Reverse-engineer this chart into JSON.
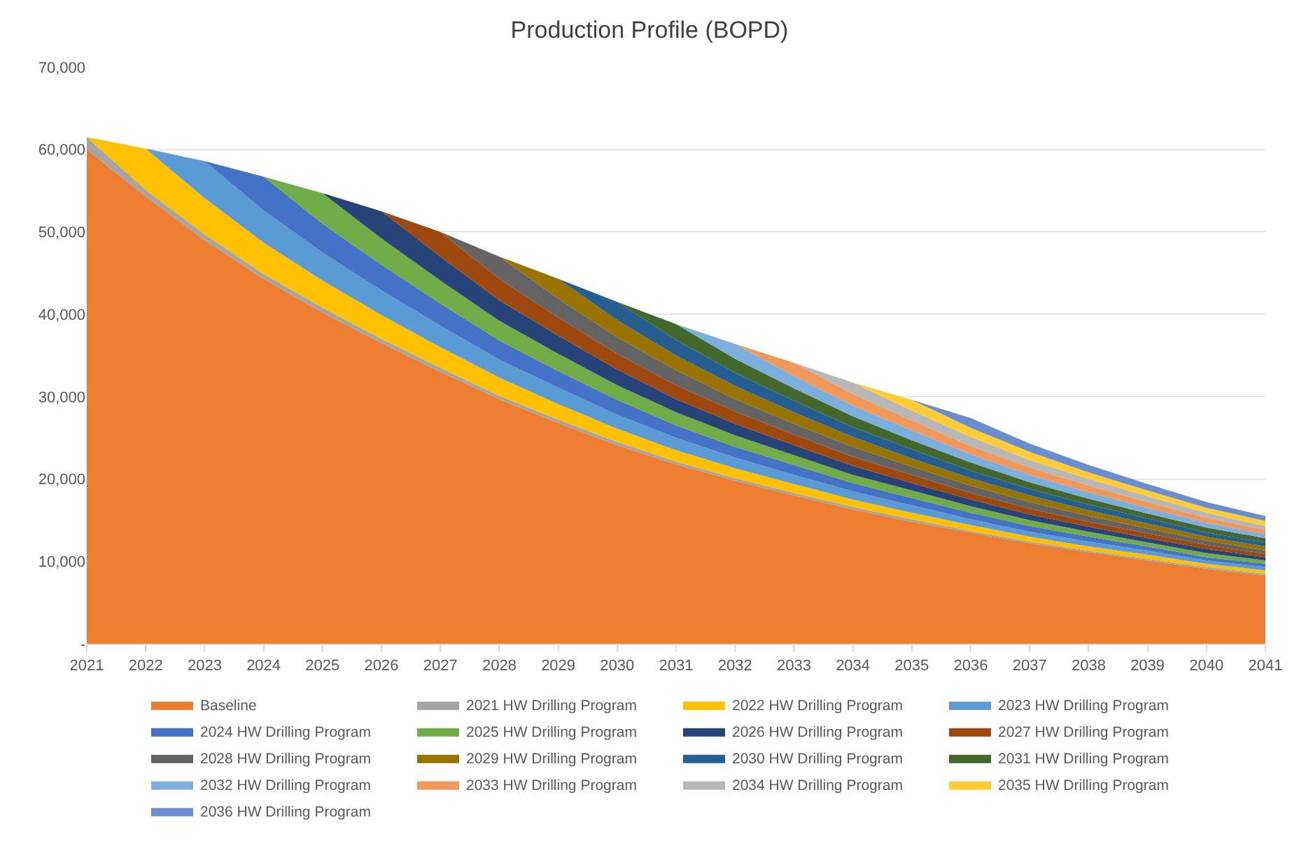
{
  "chart_data": {
    "type": "area",
    "stacked": true,
    "title": "Production Profile (BOPD)",
    "categories": [
      "2021",
      "2022",
      "2023",
      "2024",
      "2025",
      "2026",
      "2027",
      "2028",
      "2029",
      "2030",
      "2031",
      "2032",
      "2033",
      "2034",
      "2035",
      "2036",
      "2037",
      "2038",
      "2039",
      "2040",
      "2041"
    ],
    "ylim": [
      0,
      70000
    ],
    "yticks": [
      {
        "value": 0,
        "label": "-"
      },
      {
        "value": 10000,
        "label": "10,000"
      },
      {
        "value": 20000,
        "label": "20,000"
      },
      {
        "value": 30000,
        "label": "30,000"
      },
      {
        "value": 40000,
        "label": "40,000"
      },
      {
        "value": 50000,
        "label": "50,000"
      },
      {
        "value": 60000,
        "label": "60,000"
      },
      {
        "value": 70000,
        "label": "70,000"
      }
    ],
    "grid": "y",
    "legend": "bottom",
    "series": [
      {
        "name": "Baseline",
        "color": "#ed7d31",
        "values": [
          60000,
          54300,
          49000,
          44300,
          40200,
          36500,
          33000,
          29700,
          26800,
          24100,
          21800,
          19800,
          18000,
          16300,
          14800,
          13500,
          12200,
          11100,
          10100,
          9100,
          8300
        ]
      },
      {
        "name": "2021 HW Drilling Program",
        "color": "#a5a5a5",
        "values": [
          1500,
          800,
          700,
          600,
          600,
          500,
          500,
          400,
          400,
          400,
          300,
          300,
          300,
          300,
          300,
          200,
          200,
          200,
          200,
          200,
          200
        ]
      },
      {
        "name": "2022 HW Drilling Program",
        "color": "#ffc000",
        "values": [
          0,
          5000,
          4400,
          3800,
          3300,
          2900,
          2500,
          2200,
          1900,
          1600,
          1400,
          1200,
          1100,
          900,
          800,
          700,
          600,
          500,
          500,
          400,
          400
        ]
      },
      {
        "name": "2023 HW Drilling Program",
        "color": "#5b9bd5",
        "values": [
          0,
          0,
          4500,
          3900,
          3400,
          3000,
          2600,
          2200,
          2000,
          1700,
          1500,
          1300,
          1100,
          1000,
          900,
          700,
          600,
          600,
          500,
          400,
          400
        ]
      },
      {
        "name": "2024 HW Drilling Program",
        "color": "#4472c4",
        "values": [
          0,
          0,
          0,
          4100,
          3500,
          3100,
          2700,
          2300,
          2000,
          1800,
          1500,
          1300,
          1200,
          1000,
          900,
          800,
          700,
          600,
          500,
          400,
          400
        ]
      },
      {
        "name": "2025 HW Drilling Program",
        "color": "#70ad47",
        "values": [
          0,
          0,
          0,
          0,
          3700,
          3200,
          2800,
          2400,
          2100,
          1800,
          1600,
          1400,
          1200,
          1000,
          900,
          800,
          700,
          600,
          500,
          500,
          400
        ]
      },
      {
        "name": "2026 HW Drilling Program",
        "color": "#264478",
        "values": [
          0,
          0,
          0,
          0,
          0,
          3300,
          2900,
          2500,
          2200,
          1900,
          1600,
          1400,
          1200,
          1100,
          900,
          800,
          700,
          600,
          500,
          500,
          400
        ]
      },
      {
        "name": "2027 HW Drilling Program",
        "color": "#9e480e",
        "values": [
          0,
          0,
          0,
          0,
          0,
          0,
          3000,
          2600,
          2200,
          1900,
          1700,
          1500,
          1300,
          1100,
          1000,
          800,
          700,
          600,
          600,
          500,
          400
        ]
      },
      {
        "name": "2028 HW Drilling Program",
        "color": "#636363",
        "values": [
          0,
          0,
          0,
          0,
          0,
          0,
          0,
          2700,
          2300,
          2000,
          1800,
          1500,
          1300,
          1200,
          1000,
          900,
          800,
          700,
          600,
          500,
          400
        ]
      },
      {
        "name": "2029 HW Drilling Program",
        "color": "#997300",
        "values": [
          0,
          0,
          0,
          0,
          0,
          0,
          0,
          0,
          2400,
          2100,
          1800,
          1600,
          1400,
          1200,
          1000,
          900,
          800,
          700,
          600,
          500,
          500
        ]
      },
      {
        "name": "2030 HW Drilling Program",
        "color": "#255e91",
        "values": [
          0,
          0,
          0,
          0,
          0,
          0,
          0,
          0,
          0,
          2200,
          1900,
          1600,
          1400,
          1200,
          1100,
          900,
          800,
          700,
          600,
          500,
          500
        ]
      },
      {
        "name": "2031 HW Drilling Program",
        "color": "#43682b",
        "values": [
          0,
          0,
          0,
          0,
          0,
          0,
          0,
          0,
          0,
          0,
          1900,
          1700,
          1500,
          1300,
          1100,
          1000,
          800,
          700,
          600,
          600,
          500
        ]
      },
      {
        "name": "2032 HW Drilling Program",
        "color": "#7cafdd",
        "values": [
          0,
          0,
          0,
          0,
          0,
          0,
          0,
          0,
          0,
          0,
          0,
          1800,
          1500,
          1300,
          1200,
          1000,
          900,
          800,
          700,
          600,
          500
        ]
      },
      {
        "name": "2033 HW Drilling Program",
        "color": "#f1975a",
        "values": [
          0,
          0,
          0,
          0,
          0,
          0,
          0,
          0,
          0,
          0,
          0,
          0,
          1600,
          1400,
          1200,
          1000,
          900,
          800,
          700,
          600,
          500
        ]
      },
      {
        "name": "2034 HW Drilling Program",
        "color": "#b7b7b7",
        "values": [
          0,
          0,
          0,
          0,
          0,
          0,
          0,
          0,
          0,
          0,
          0,
          0,
          0,
          1400,
          1200,
          1100,
          900,
          800,
          700,
          600,
          500
        ]
      },
      {
        "name": "2035 HW Drilling Program",
        "color": "#ffcd33",
        "values": [
          0,
          0,
          0,
          0,
          0,
          0,
          0,
          0,
          0,
          0,
          0,
          0,
          0,
          0,
          1300,
          1100,
          1000,
          800,
          700,
          600,
          600
        ]
      },
      {
        "name": "2036 HW Drilling Program",
        "color": "#698ed0",
        "values": [
          0,
          0,
          0,
          0,
          0,
          0,
          0,
          0,
          0,
          0,
          0,
          0,
          0,
          0,
          0,
          1200,
          1000,
          900,
          800,
          700,
          600
        ]
      }
    ]
  }
}
